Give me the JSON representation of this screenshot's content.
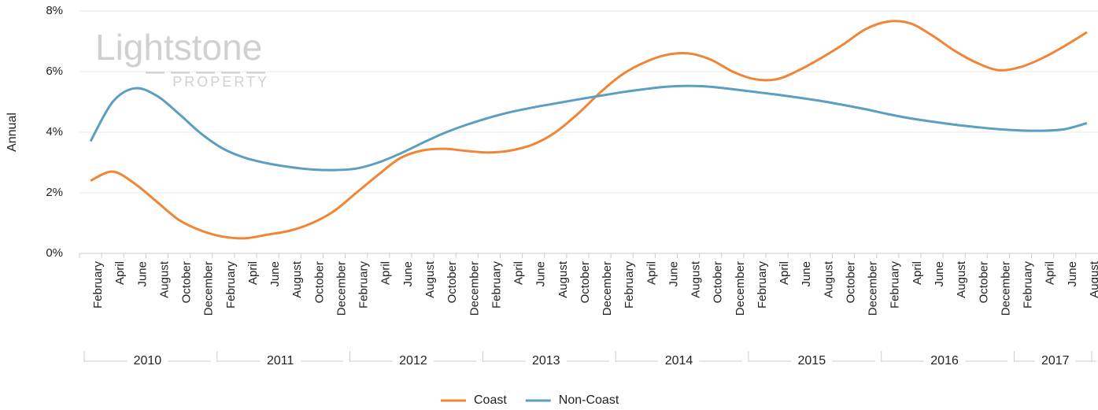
{
  "chart_data": {
    "type": "line",
    "watermark": {
      "name": "Lightstone",
      "sub": "PROPERTY"
    },
    "y_label": "Annual",
    "ylim": [
      0,
      8
    ],
    "yticks": [
      {
        "value": 0,
        "label": "0%"
      },
      {
        "value": 2,
        "label": "2%"
      },
      {
        "value": 4,
        "label": "4%"
      },
      {
        "value": 6,
        "label": "6%"
      },
      {
        "value": 8,
        "label": "8%"
      }
    ],
    "grid": true,
    "groups": [
      {
        "name": "2010",
        "categories": [
          "February",
          "April",
          "June",
          "August",
          "October",
          "December"
        ]
      },
      {
        "name": "2011",
        "categories": [
          "February",
          "April",
          "June",
          "August",
          "October",
          "December"
        ]
      },
      {
        "name": "2012",
        "categories": [
          "February",
          "April",
          "June",
          "August",
          "October",
          "December"
        ]
      },
      {
        "name": "2013",
        "categories": [
          "February",
          "April",
          "June",
          "August",
          "October",
          "December"
        ]
      },
      {
        "name": "2014",
        "categories": [
          "February",
          "April",
          "June",
          "August",
          "October",
          "December"
        ]
      },
      {
        "name": "2015",
        "categories": [
          "February",
          "April",
          "June",
          "August",
          "October",
          "December"
        ]
      },
      {
        "name": "2016",
        "categories": [
          "February",
          "April",
          "June",
          "August",
          "October",
          "December"
        ]
      },
      {
        "name": "2017",
        "categories": [
          "February",
          "April",
          "June",
          "August"
        ]
      }
    ],
    "series": [
      {
        "name": "Coast",
        "color": "#f08536",
        "values": [
          2.4,
          2.7,
          2.3,
          1.7,
          1.1,
          0.75,
          0.55,
          0.5,
          0.62,
          0.75,
          1.0,
          1.4,
          2.0,
          2.6,
          3.15,
          3.4,
          3.45,
          3.38,
          3.33,
          3.4,
          3.6,
          4.0,
          4.6,
          5.3,
          5.9,
          6.3,
          6.55,
          6.6,
          6.4,
          6.0,
          5.75,
          5.75,
          6.05,
          6.45,
          6.9,
          7.4,
          7.65,
          7.6,
          7.2,
          6.7,
          6.3,
          6.05,
          6.15,
          6.45,
          6.85,
          7.3
        ]
      },
      {
        "name": "Non-Coast",
        "color": "#5a9fc0",
        "values": [
          3.7,
          5.0,
          5.45,
          5.2,
          4.6,
          3.95,
          3.45,
          3.15,
          2.97,
          2.85,
          2.77,
          2.75,
          2.8,
          3.0,
          3.3,
          3.65,
          3.98,
          4.25,
          4.48,
          4.67,
          4.82,
          4.95,
          5.08,
          5.2,
          5.32,
          5.42,
          5.5,
          5.53,
          5.5,
          5.42,
          5.33,
          5.24,
          5.14,
          5.03,
          4.9,
          4.76,
          4.6,
          4.46,
          4.35,
          4.25,
          4.17,
          4.1,
          4.06,
          4.05,
          4.1,
          4.3
        ]
      }
    ],
    "legend": "bottom"
  }
}
